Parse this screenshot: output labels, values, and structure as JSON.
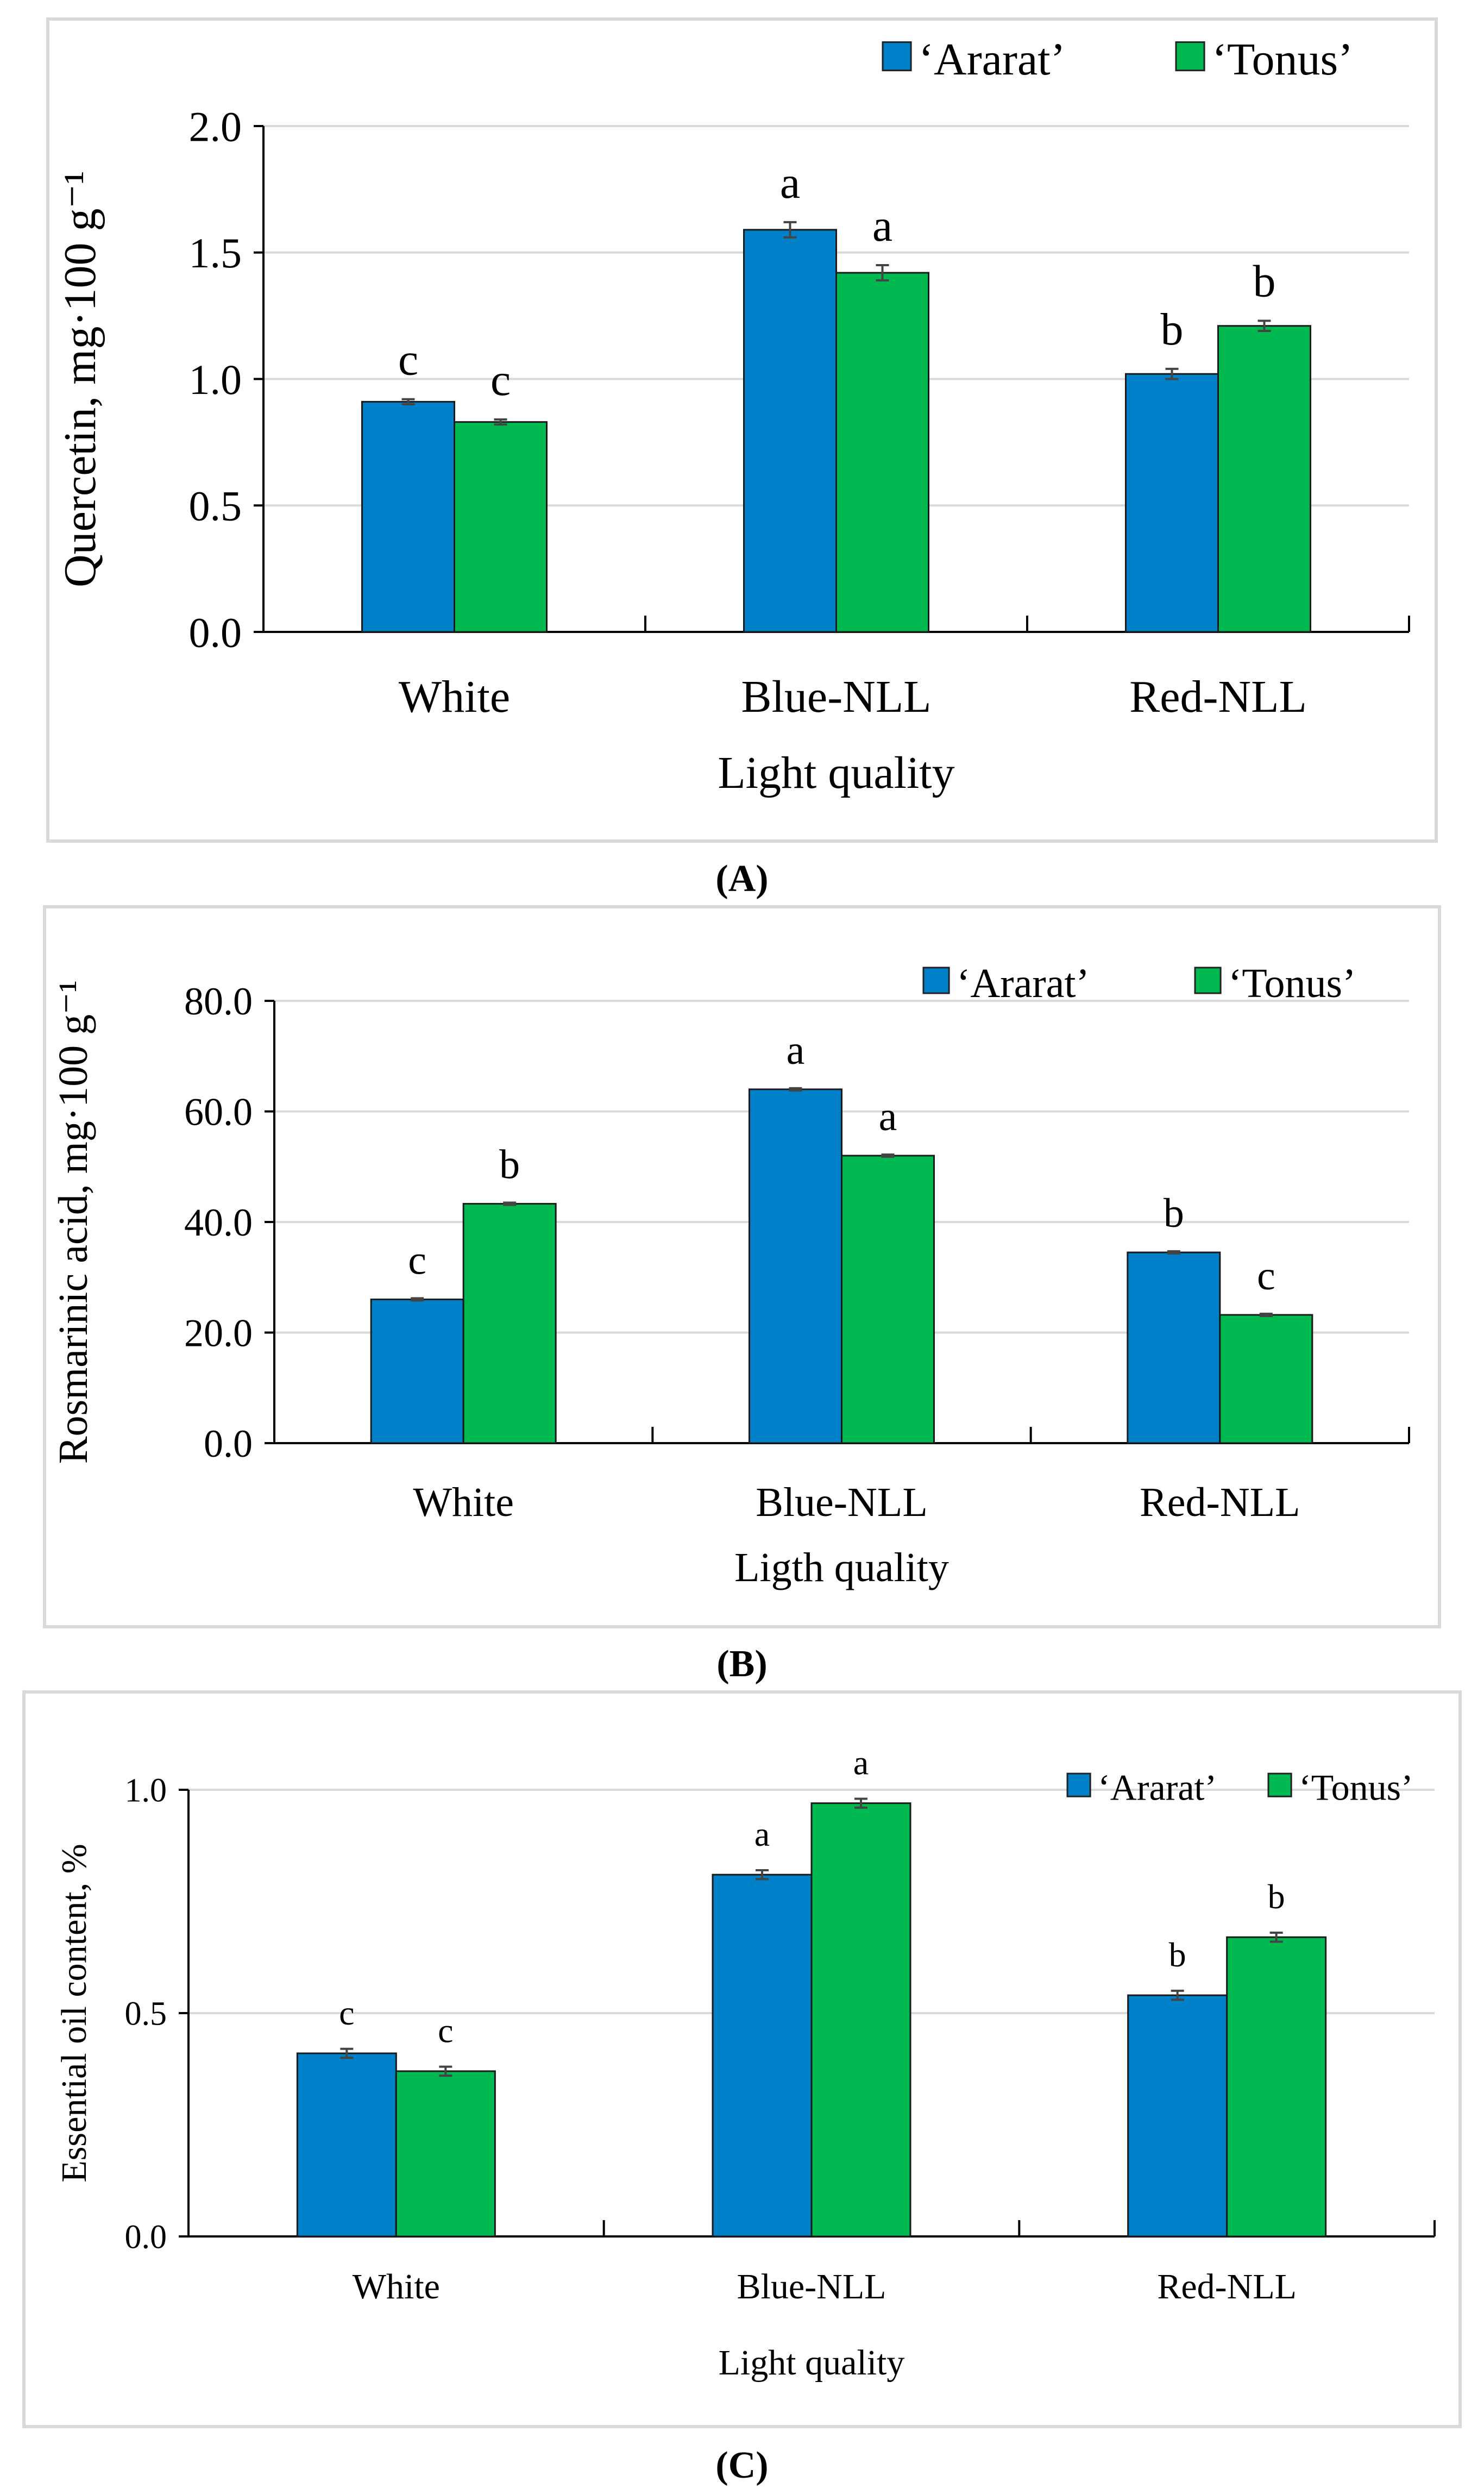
{
  "colors": {
    "ararat": "#0080c8",
    "tonus": "#00b950"
  },
  "chart_data": [
    {
      "type": "bar",
      "panel_label": "(A)",
      "panel_letter": "A",
      "title": "",
      "xlabel": "Light quality",
      "ylabel": "Quercetin, mg·100 g⁻¹",
      "categories": [
        "White",
        "Blue-NLL",
        "Red-NLL"
      ],
      "ylim": [
        0,
        2.0
      ],
      "yticks": [
        "0.0",
        "0.5",
        "1.0",
        "1.5",
        "2.0"
      ],
      "ytick_values": [
        0,
        0.5,
        1.0,
        1.5,
        2.0
      ],
      "grid": true,
      "legend_position": "top-right",
      "series": [
        {
          "name": "‘Ararat’",
          "values": [
            0.91,
            1.59,
            1.02
          ],
          "errors": [
            0.01,
            0.03,
            0.02
          ],
          "letters": [
            "c",
            "a",
            "b"
          ]
        },
        {
          "name": "‘Tonus’",
          "values": [
            0.83,
            1.42,
            1.21
          ],
          "errors": [
            0.01,
            0.03,
            0.02
          ],
          "letters": [
            "c",
            "a",
            "b"
          ]
        }
      ]
    },
    {
      "type": "bar",
      "panel_label": "(B)",
      "panel_letter": "B",
      "title": "",
      "xlabel": "Ligth quality",
      "ylabel": "Rosmarinic acid, mg·100 g⁻¹",
      "categories": [
        "White",
        "Blue-NLL",
        "Red-NLL"
      ],
      "ylim": [
        0,
        80
      ],
      "yticks": [
        "0.0",
        "20.0",
        "40.0",
        "60.0",
        "80.0"
      ],
      "ytick_values": [
        0,
        20,
        40,
        60,
        80
      ],
      "grid": true,
      "legend_position": "top-right",
      "series": [
        {
          "name": "‘Ararat’",
          "values": [
            26.0,
            64.0,
            34.5
          ],
          "errors": [
            0.2,
            0.2,
            0.2
          ],
          "letters": [
            "c",
            "a",
            "b"
          ]
        },
        {
          "name": "‘Tonus’",
          "values": [
            43.3,
            52.0,
            23.2
          ],
          "errors": [
            0.2,
            0.2,
            0.2
          ],
          "letters": [
            "b",
            "a",
            "c"
          ]
        }
      ]
    },
    {
      "type": "bar",
      "panel_label": "(C)",
      "panel_letter": "C",
      "title": "",
      "xlabel": "Light quality",
      "ylabel": "Essential oil content, %",
      "categories": [
        "White",
        "Blue-NLL",
        "Red-NLL"
      ],
      "ylim": [
        0,
        1.0
      ],
      "yticks": [
        "0.0",
        "0.5",
        "1.0"
      ],
      "ytick_values": [
        0,
        0.5,
        1.0
      ],
      "grid": true,
      "legend_position": "top-right",
      "series": [
        {
          "name": "‘Ararat’",
          "values": [
            0.41,
            0.81,
            0.54
          ],
          "errors": [
            0.01,
            0.01,
            0.01
          ],
          "letters": [
            "c",
            "a",
            "b"
          ]
        },
        {
          "name": "‘Tonus’",
          "values": [
            0.37,
            0.97,
            0.67
          ],
          "errors": [
            0.01,
            0.01,
            0.01
          ],
          "letters": [
            "c",
            "a",
            "b"
          ]
        }
      ]
    }
  ]
}
